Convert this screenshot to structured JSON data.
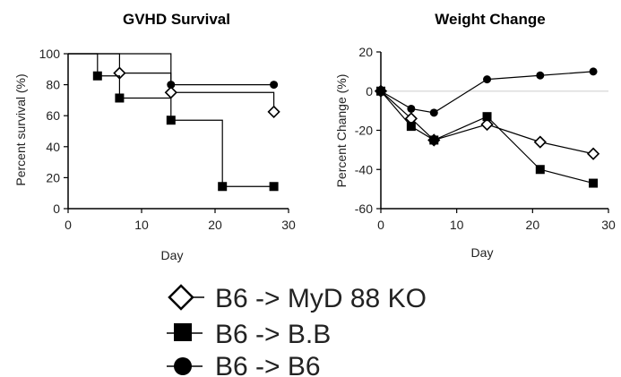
{
  "chart_data": [
    {
      "type": "line",
      "subtype": "step",
      "title": "GVHD Survival",
      "xlabel": "Day",
      "ylabel": "Percent survival (%)",
      "xlim": [
        0,
        30
      ],
      "ylim": [
        0,
        100
      ],
      "xticks": [
        0,
        10,
        20,
        30
      ],
      "yticks": [
        0,
        20,
        40,
        60,
        80,
        100
      ],
      "grid": false,
      "series": [
        {
          "name": "B6 -> MyD 88 KO",
          "marker": "open-diamond",
          "points": [
            [
              0,
              100
            ],
            [
              7,
              100
            ],
            [
              7,
              87.5
            ],
            [
              14,
              87.5
            ],
            [
              14,
              75
            ],
            [
              28,
              75
            ],
            [
              28,
              62.5
            ]
          ],
          "markers": [
            [
              7,
              87.5
            ],
            [
              14,
              75
            ],
            [
              28,
              62.5
            ]
          ]
        },
        {
          "name": "B6 -> B.B",
          "marker": "filled-square",
          "points": [
            [
              0,
              100
            ],
            [
              4,
              100
            ],
            [
              4,
              85.7
            ],
            [
              7,
              85.7
            ],
            [
              7,
              71.4
            ],
            [
              14,
              71.4
            ],
            [
              14,
              57.1
            ],
            [
              21,
              57.1
            ],
            [
              21,
              14.3
            ],
            [
              28,
              14.3
            ]
          ],
          "markers": [
            [
              4,
              85.7
            ],
            [
              7,
              71.4
            ],
            [
              14,
              57.1
            ],
            [
              21,
              14.3
            ],
            [
              28,
              14.3
            ]
          ]
        },
        {
          "name": "B6 -> B6",
          "marker": "filled-circle",
          "points": [
            [
              0,
              100
            ],
            [
              14,
              100
            ],
            [
              14,
              80
            ],
            [
              28,
              80
            ]
          ],
          "markers": [
            [
              14,
              80
            ],
            [
              28,
              80
            ]
          ]
        }
      ]
    },
    {
      "type": "line",
      "title": "Weight Change",
      "xlabel": "Day",
      "ylabel": "Percent Change (%)",
      "xlim": [
        0,
        30
      ],
      "ylim": [
        -60,
        20
      ],
      "xticks": [
        0,
        10,
        20,
        30
      ],
      "yticks": [
        -60,
        -40,
        -20,
        0,
        20
      ],
      "grid": false,
      "zero_line": true,
      "series": [
        {
          "name": "B6 -> MyD 88 KO",
          "marker": "open-diamond",
          "x": [
            0,
            4,
            7,
            14,
            21,
            28
          ],
          "y": [
            0,
            -14,
            -25,
            -17,
            -26,
            -32
          ]
        },
        {
          "name": "B6 -> B.B",
          "marker": "filled-square",
          "x": [
            0,
            4,
            7,
            14,
            21,
            28
          ],
          "y": [
            0,
            -18,
            -25,
            -13,
            -40,
            -47
          ]
        },
        {
          "name": "B6 -> B6",
          "marker": "filled-circle",
          "x": [
            0,
            4,
            7,
            14,
            21,
            28
          ],
          "y": [
            0,
            -9,
            -11,
            6,
            8,
            10
          ]
        }
      ]
    }
  ],
  "legend": {
    "placement": "bottom-center",
    "items": [
      {
        "label": "B6 -> MyD 88 KO",
        "marker": "open-diamond"
      },
      {
        "label": "B6 -> B.B",
        "marker": "filled-square"
      },
      {
        "label": "B6 -> B6",
        "marker": "filled-circle"
      }
    ]
  },
  "colors": {
    "ink": "#000000",
    "zero_line": "#dddddd",
    "text": "#222222"
  }
}
